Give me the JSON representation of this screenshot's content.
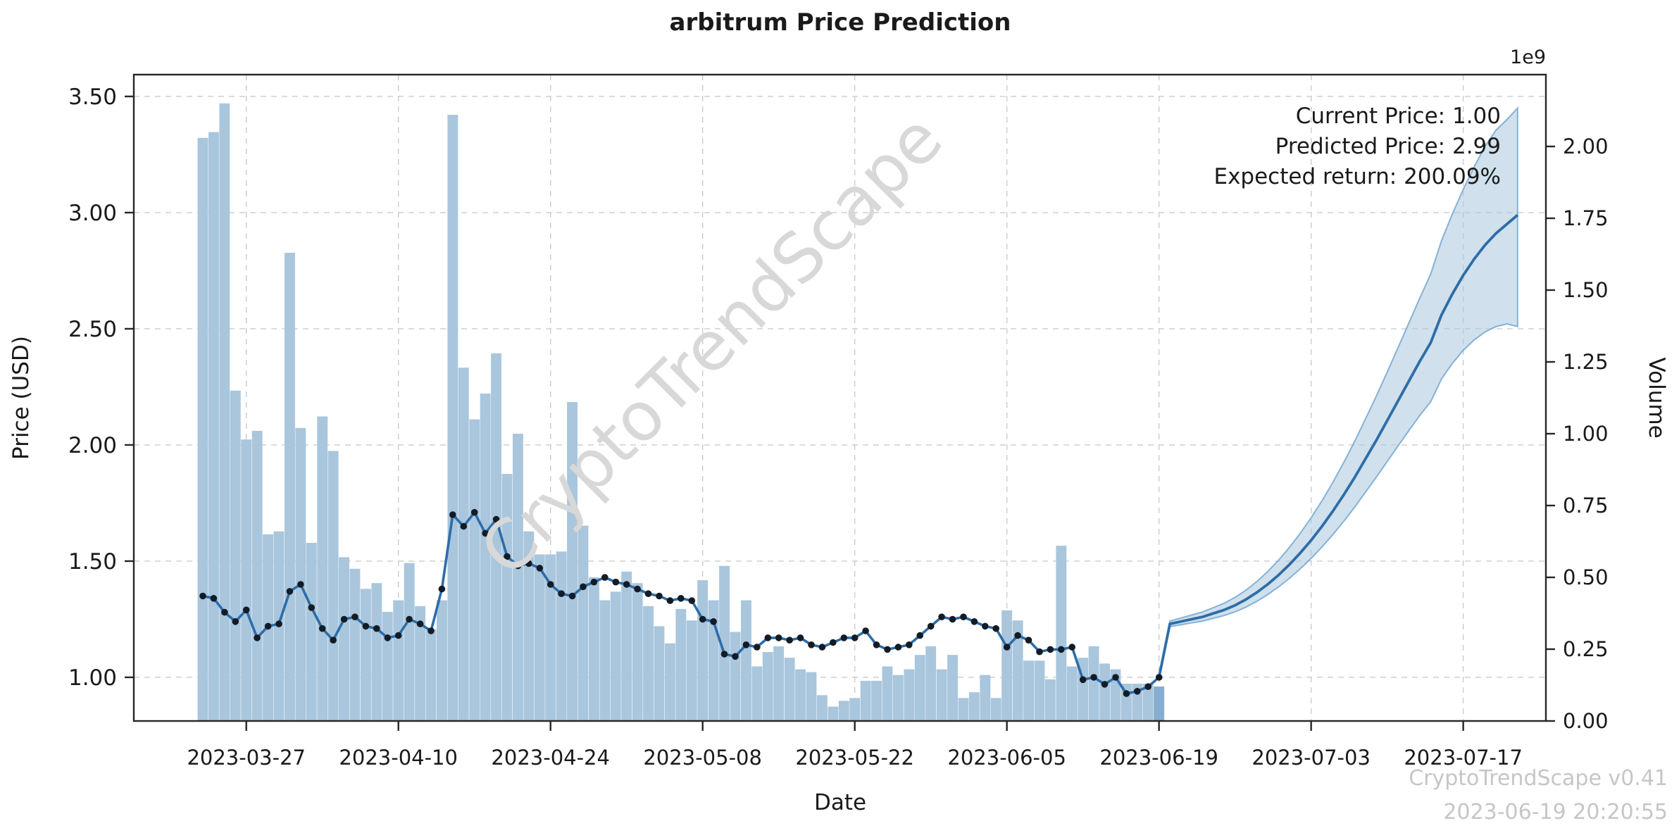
{
  "title": "arbitrum Price Prediction",
  "annotation": {
    "lines": [
      "Current Price: 1.00",
      "Predicted Price: 2.99",
      "Expected return: 200.09%"
    ]
  },
  "watermark": "CryptoTrendScape",
  "footer": {
    "line1": "CryptoTrendScape v0.41",
    "line2": "2023-06-19 20:20:55"
  },
  "colors": {
    "bar": "#a9c6dd",
    "bar_last": "#86aed0",
    "line": "#2d6da8",
    "dot": "#131c26",
    "band_fill": "#aac6dd",
    "band_edge": "#6ba3cf",
    "grid": "#cccccc",
    "spine": "#262626",
    "text": "#1a1a1a"
  },
  "chart_data": {
    "type": "line+bar",
    "title": "arbitrum Price Prediction",
    "xlabel": "Date",
    "ylabel_left": "Price (USD)",
    "ylabel_right": "Volume",
    "right_axis_offset_label": "1e9",
    "grid": true,
    "legend": false,
    "x_tick_labels": [
      "2023-03-27",
      "2023-04-10",
      "2023-04-24",
      "2023-05-08",
      "2023-05-22",
      "2023-06-05",
      "2023-06-19",
      "2023-07-03",
      "2023-07-17"
    ],
    "y_left_ticks": [
      1.0,
      1.5,
      2.0,
      2.5,
      3.0,
      3.5
    ],
    "y_right_ticks": [
      0.0,
      0.25,
      0.5,
      0.75,
      1.0,
      1.25,
      1.5,
      1.75,
      2.0
    ],
    "y_left_range": [
      0.812,
      3.594
    ],
    "y_right_range_1e9": [
      0,
      2.25
    ],
    "history": {
      "dates": [
        "2023-03-23",
        "2023-03-24",
        "2023-03-25",
        "2023-03-26",
        "2023-03-27",
        "2023-03-28",
        "2023-03-29",
        "2023-03-30",
        "2023-03-31",
        "2023-04-01",
        "2023-04-02",
        "2023-04-03",
        "2023-04-04",
        "2023-04-05",
        "2023-04-06",
        "2023-04-07",
        "2023-04-08",
        "2023-04-09",
        "2023-04-10",
        "2023-04-11",
        "2023-04-12",
        "2023-04-13",
        "2023-04-14",
        "2023-04-15",
        "2023-04-16",
        "2023-04-17",
        "2023-04-18",
        "2023-04-19",
        "2023-04-20",
        "2023-04-21",
        "2023-04-22",
        "2023-04-23",
        "2023-04-24",
        "2023-04-25",
        "2023-04-26",
        "2023-04-27",
        "2023-04-28",
        "2023-04-29",
        "2023-04-30",
        "2023-05-01",
        "2023-05-02",
        "2023-05-03",
        "2023-05-04",
        "2023-05-05",
        "2023-05-06",
        "2023-05-07",
        "2023-05-08",
        "2023-05-09",
        "2023-05-10",
        "2023-05-11",
        "2023-05-12",
        "2023-05-13",
        "2023-05-14",
        "2023-05-15",
        "2023-05-16",
        "2023-05-17",
        "2023-05-18",
        "2023-05-19",
        "2023-05-20",
        "2023-05-21",
        "2023-05-22",
        "2023-05-23",
        "2023-05-24",
        "2023-05-25",
        "2023-05-26",
        "2023-05-27",
        "2023-05-28",
        "2023-05-29",
        "2023-05-30",
        "2023-05-31",
        "2023-06-01",
        "2023-06-02",
        "2023-06-03",
        "2023-06-04",
        "2023-06-05",
        "2023-06-06",
        "2023-06-07",
        "2023-06-08",
        "2023-06-09",
        "2023-06-10",
        "2023-06-11",
        "2023-06-12",
        "2023-06-13",
        "2023-06-14",
        "2023-06-15",
        "2023-06-16",
        "2023-06-17",
        "2023-06-18",
        "2023-06-19"
      ],
      "price_usd": [
        1.35,
        1.34,
        1.28,
        1.24,
        1.29,
        1.17,
        1.22,
        1.23,
        1.37,
        1.4,
        1.3,
        1.21,
        1.16,
        1.25,
        1.26,
        1.22,
        1.21,
        1.17,
        1.18,
        1.25,
        1.23,
        1.2,
        1.38,
        1.7,
        1.65,
        1.71,
        1.62,
        1.68,
        1.52,
        1.48,
        1.49,
        1.47,
        1.4,
        1.36,
        1.35,
        1.39,
        1.41,
        1.43,
        1.41,
        1.4,
        1.38,
        1.36,
        1.35,
        1.33,
        1.34,
        1.33,
        1.25,
        1.24,
        1.1,
        1.09,
        1.14,
        1.13,
        1.17,
        1.17,
        1.16,
        1.17,
        1.14,
        1.13,
        1.15,
        1.17,
        1.17,
        1.2,
        1.14,
        1.12,
        1.13,
        1.14,
        1.18,
        1.22,
        1.26,
        1.25,
        1.26,
        1.24,
        1.22,
        1.21,
        1.13,
        1.18,
        1.16,
        1.11,
        1.12,
        1.12,
        1.13,
        0.99,
        1.0,
        0.97,
        1.0,
        0.93,
        0.94,
        0.96,
        1.0
      ],
      "volume_1e9": [
        2.03,
        2.05,
        2.15,
        1.15,
        0.98,
        1.01,
        0.65,
        0.66,
        1.63,
        1.02,
        0.62,
        1.06,
        0.94,
        0.57,
        0.53,
        0.46,
        0.48,
        0.38,
        0.42,
        0.55,
        0.4,
        0.32,
        0.42,
        2.11,
        1.23,
        1.05,
        1.14,
        1.28,
        0.86,
        1.0,
        0.66,
        0.58,
        0.58,
        0.59,
        1.11,
        0.68,
        0.5,
        0.42,
        0.45,
        0.52,
        0.48,
        0.4,
        0.33,
        0.27,
        0.39,
        0.35,
        0.49,
        0.42,
        0.54,
        0.31,
        0.42,
        0.19,
        0.24,
        0.26,
        0.22,
        0.18,
        0.17,
        0.09,
        0.05,
        0.07,
        0.08,
        0.14,
        0.14,
        0.19,
        0.16,
        0.18,
        0.23,
        0.26,
        0.18,
        0.23,
        0.08,
        0.1,
        0.16,
        0.08,
        0.385,
        0.35,
        0.21,
        0.21,
        0.145,
        0.61,
        0.19,
        0.22,
        0.26,
        0.2,
        0.18,
        0.13,
        0.13,
        0.13,
        0.12
      ]
    },
    "prediction": {
      "dates": [
        "2023-06-19",
        "2023-06-20",
        "2023-06-21",
        "2023-06-22",
        "2023-06-23",
        "2023-06-24",
        "2023-06-25",
        "2023-06-26",
        "2023-06-27",
        "2023-06-28",
        "2023-06-29",
        "2023-06-30",
        "2023-07-01",
        "2023-07-02",
        "2023-07-03",
        "2023-07-04",
        "2023-07-05",
        "2023-07-06",
        "2023-07-07",
        "2023-07-08",
        "2023-07-09",
        "2023-07-10",
        "2023-07-11",
        "2023-07-12",
        "2023-07-13",
        "2023-07-14",
        "2023-07-15",
        "2023-07-16",
        "2023-07-17",
        "2023-07-18",
        "2023-07-19",
        "2023-07-20",
        "2023-07-21",
        "2023-07-22"
      ],
      "price_usd": [
        1.0,
        1.23,
        1.24,
        1.25,
        1.26,
        1.275,
        1.29,
        1.31,
        1.335,
        1.365,
        1.4,
        1.44,
        1.485,
        1.535,
        1.59,
        1.65,
        1.715,
        1.785,
        1.86,
        1.94,
        2.02,
        2.105,
        2.19,
        2.275,
        2.36,
        2.44,
        2.56,
        2.65,
        2.73,
        2.8,
        2.86,
        2.91,
        2.95,
        2.99
      ],
      "band_lower": [
        1.0,
        1.218,
        1.226,
        1.234,
        1.242,
        1.254,
        1.266,
        1.282,
        1.302,
        1.327,
        1.356,
        1.389,
        1.426,
        1.467,
        1.512,
        1.561,
        1.614,
        1.671,
        1.732,
        1.797,
        1.861,
        1.929,
        1.996,
        2.062,
        2.127,
        2.186,
        2.284,
        2.351,
        2.407,
        2.452,
        2.486,
        2.509,
        2.521,
        2.51
      ],
      "band_upper": [
        1.0,
        1.242,
        1.255,
        1.268,
        1.281,
        1.3,
        1.319,
        1.344,
        1.375,
        1.412,
        1.455,
        1.504,
        1.559,
        1.62,
        1.687,
        1.76,
        1.839,
        1.924,
        2.015,
        2.112,
        2.21,
        2.314,
        2.419,
        2.525,
        2.632,
        2.735,
        2.879,
        2.994,
        3.1,
        3.197,
        3.285,
        3.354,
        3.4,
        3.45
      ],
      "current_price": 1.0,
      "predicted_price": 2.99,
      "expected_return_pct": 200.09
    }
  }
}
